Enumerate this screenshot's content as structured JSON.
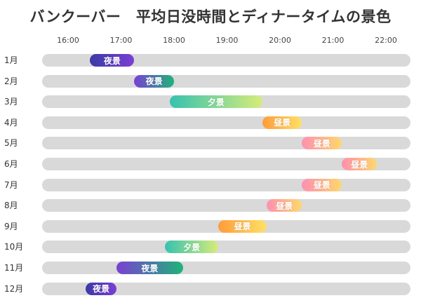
{
  "chart_data": {
    "type": "bar",
    "title": "バンクーバー　平均日没時間とディナータイムの景色",
    "x_ticks": [
      "16:00",
      "17:00",
      "18:00",
      "19:00",
      "20:00",
      "21:00",
      "22:00"
    ],
    "xlim": [
      "16:00",
      "22:00"
    ],
    "grid": false,
    "legend": "none",
    "rows": [
      {
        "month": "1月",
        "start": "16:25",
        "end": "17:15",
        "label": "夜景",
        "style": "night"
      },
      {
        "month": "2月",
        "start": "17:15",
        "end": "18:00",
        "label": "夜景",
        "style": "dusk-night"
      },
      {
        "month": "3月",
        "start": "17:55",
        "end": "19:40",
        "label": "夕景",
        "style": "sunset"
      },
      {
        "month": "4月",
        "start": "19:40",
        "end": "20:25",
        "label": "昼景",
        "style": "day"
      },
      {
        "month": "5月",
        "start": "20:25",
        "end": "21:10",
        "label": "昼景",
        "style": "day-pink"
      },
      {
        "month": "6月",
        "start": "21:10",
        "end": "21:50",
        "label": "昼景",
        "style": "day-pink"
      },
      {
        "month": "7月",
        "start": "20:25",
        "end": "21:10",
        "label": "昼景",
        "style": "day-pink"
      },
      {
        "month": "8月",
        "start": "19:45",
        "end": "20:25",
        "label": "昼景",
        "style": "day-pink"
      },
      {
        "month": "9月",
        "start": "18:50",
        "end": "19:45",
        "label": "昼景",
        "style": "day"
      },
      {
        "month": "10月",
        "start": "17:50",
        "end": "18:50",
        "label": "夕景",
        "style": "sunset"
      },
      {
        "month": "11月",
        "start": "16:55",
        "end": "18:10",
        "label": "夜景",
        "style": "dusk-night"
      },
      {
        "month": "12月",
        "start": "16:20",
        "end": "16:55",
        "label": "夜景",
        "style": "night"
      }
    ]
  },
  "colors": {
    "track": "#d9d9d9",
    "night": [
      "#3b3aa6",
      "#7a3fd4"
    ],
    "dusk-night": [
      "#7a3fd4",
      "#1fb37a"
    ],
    "sunset": [
      "#36c2b0",
      "#d6ec7a"
    ],
    "day": [
      "#ff9c3b",
      "#ffe066"
    ],
    "day-pink": [
      "#ff8fb1",
      "#ffd86b"
    ]
  }
}
